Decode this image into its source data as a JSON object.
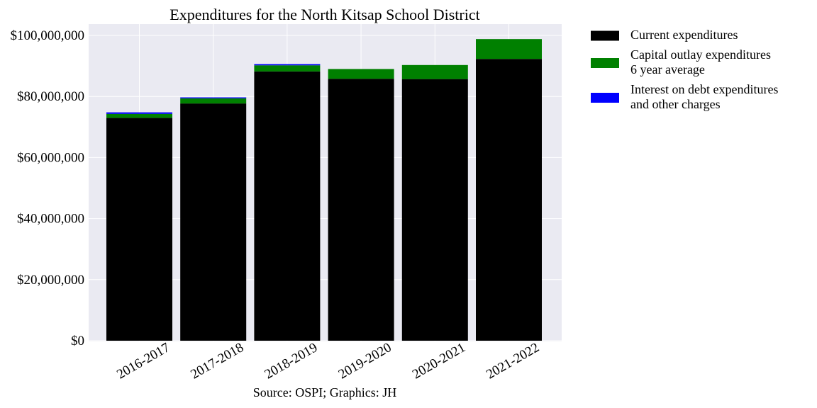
{
  "chart_data": {
    "type": "bar",
    "stacked": true,
    "title": "Expenditures for the North Kitsap School District",
    "source_note": "Source: OSPI; Graphics: JH",
    "xlabel": "",
    "ylabel": "",
    "categories": [
      "2016-2017",
      "2017-2018",
      "2018-2019",
      "2019-2020",
      "2020-2021",
      "2021-2022"
    ],
    "series": [
      {
        "name_lines": [
          "Current expenditures"
        ],
        "color": "#000000",
        "values": [
          73000000,
          77700000,
          88200000,
          85800000,
          85700000,
          92300000
        ]
      },
      {
        "name_lines": [
          "Capital outlay expenditures",
          "6 year average"
        ],
        "color": "#008000",
        "values": [
          1300000,
          1700000,
          2000000,
          3200000,
          4600000,
          6500000
        ]
      },
      {
        "name_lines": [
          "Interest on debt expenditures",
          "and other charges"
        ],
        "color": "#0000ff",
        "values": [
          500000,
          300000,
          400000,
          0,
          0,
          0
        ]
      }
    ],
    "ylim": [
      0,
      100000000
    ],
    "yticks": [
      0,
      20000000,
      40000000,
      60000000,
      80000000,
      100000000
    ],
    "ytick_labels": [
      "$0",
      "$20,000,000",
      "$40,000,000",
      "$60,000,000",
      "$80,000,000",
      "$100,000,000"
    ],
    "grid": true,
    "legend_position": "outside-right",
    "plot_background": "#eaeaf2",
    "grid_color": "#ffffff"
  }
}
